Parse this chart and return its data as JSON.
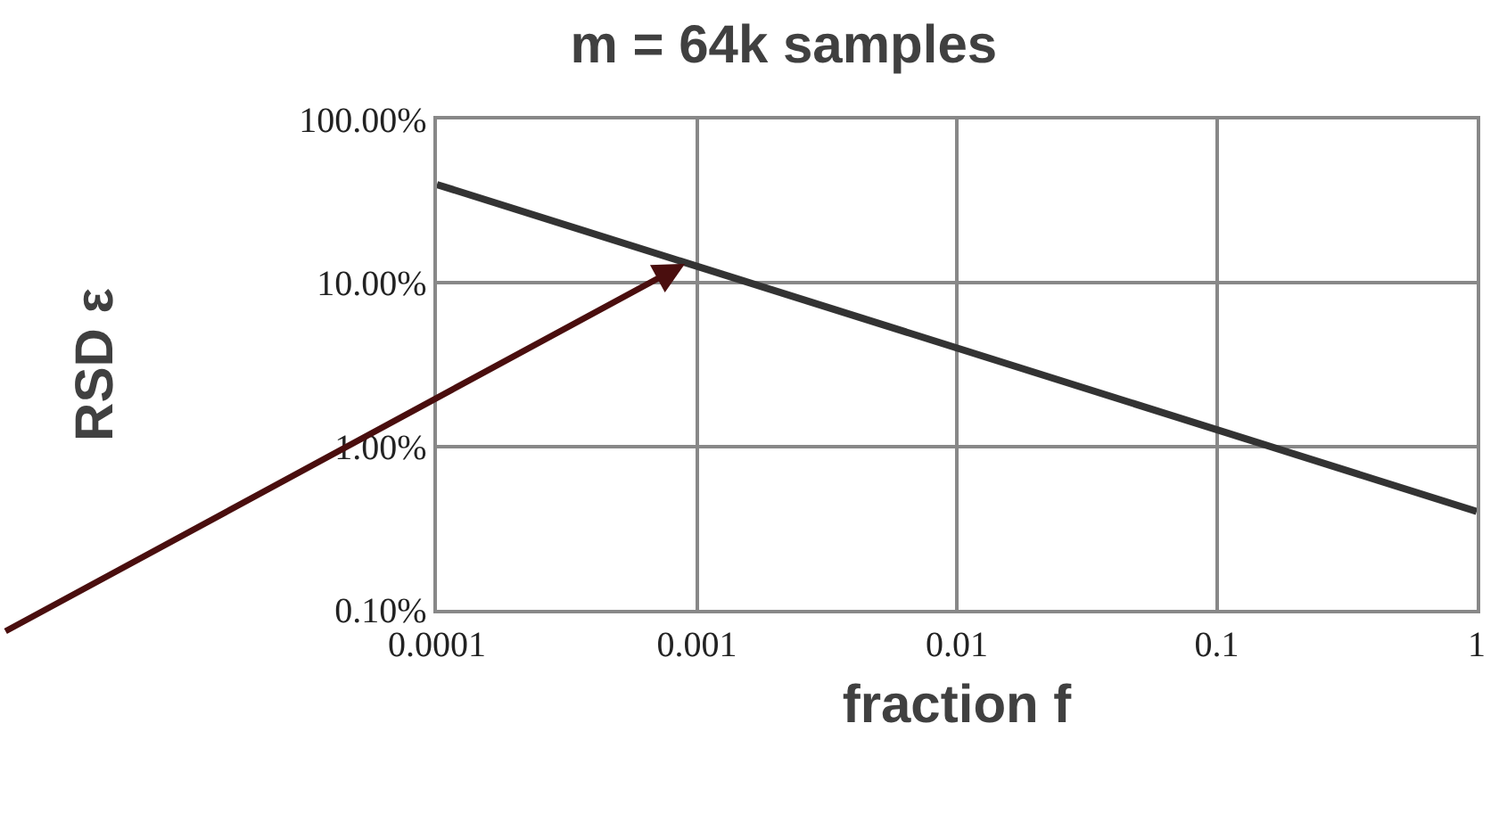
{
  "chart_data": {
    "type": "line",
    "title": "m = 64k samples",
    "xlabel": "fraction f",
    "ylabel": "RSD ε",
    "x": [
      0.0001,
      1
    ],
    "series": [
      {
        "color": "#333333",
        "values": [
          40,
          0.4
        ]
      }
    ],
    "log": "xy",
    "grid": true,
    "marker": "none",
    "line_style": "solid",
    "xlim": [
      0.0001,
      1
    ],
    "ylim": [
      0.1,
      100
    ],
    "xticks": [
      0.0001,
      0.001,
      0.01,
      0.1,
      1
    ],
    "yticks": [
      {
        "value": 0.1,
        "label": "0.10%"
      },
      {
        "value": 1,
        "label": "1.00%"
      },
      {
        "value": 10,
        "label": "10.00%"
      },
      {
        "value": 100,
        "label": "100.00%"
      }
    ]
  }
}
